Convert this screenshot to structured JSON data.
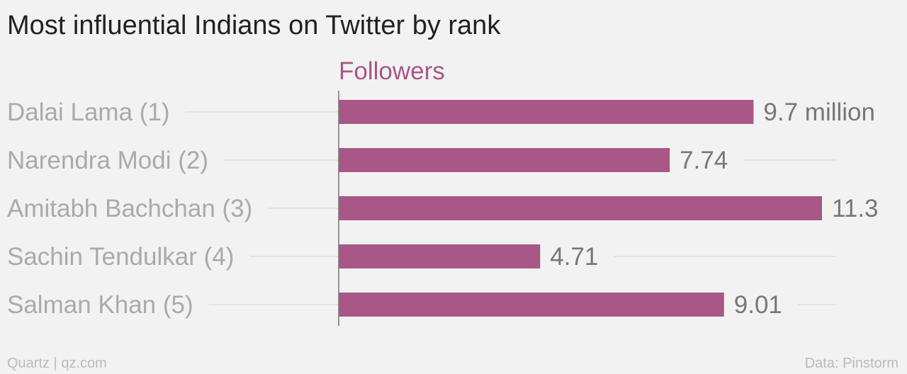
{
  "title": "Most influential Indians on Twitter by rank",
  "footer": {
    "credit": "Quartz | qz.com",
    "source": "Data: Pinstorm"
  },
  "colors": {
    "bar": "#a85786",
    "series_header": "#a85786",
    "category_label": "#aaaaaa",
    "value_label": "#777777",
    "title": "#222222",
    "footer": "#bbbbbb",
    "background": "#f2f2f2"
  },
  "chart_data": {
    "type": "bar",
    "orientation": "horizontal",
    "title": "Most influential Indians on Twitter by rank",
    "series": [
      {
        "name": "Followers",
        "values": [
          9.7,
          7.74,
          11.3,
          4.71,
          9.01
        ]
      }
    ],
    "categories": [
      "Dalai Lama (1)",
      "Narendra Modi (2)",
      "Amitabh Bachchan (3)",
      "Sachin Tendulkar (4)",
      "Salman Khan (5)"
    ],
    "value_labels": [
      "9.7 million",
      "7.74",
      "11.3",
      "4.71",
      "9.01"
    ],
    "xlim": [
      0,
      11.3
    ],
    "xlabel": "",
    "ylabel": "",
    "grid": false,
    "legend": "none"
  }
}
